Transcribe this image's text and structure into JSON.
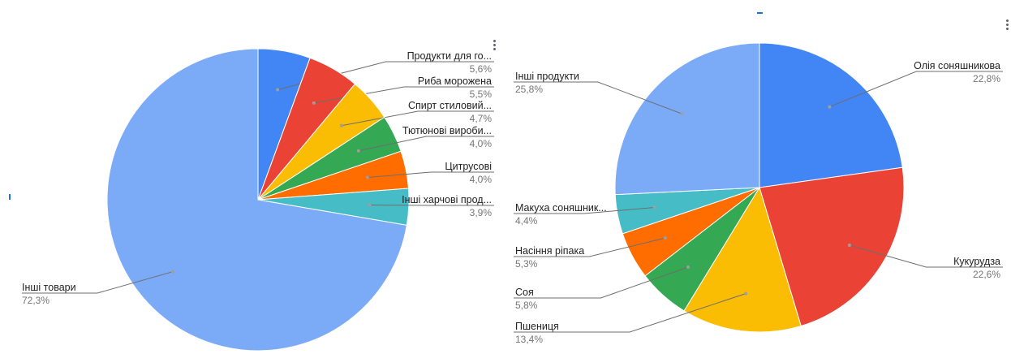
{
  "chart_data": [
    {
      "type": "pie",
      "slices": [
        {
          "label": "Продукти для го...",
          "value": 5.6,
          "value_label": "5,6%",
          "color": "#4285f4"
        },
        {
          "label": "Риба морожена",
          "value": 5.5,
          "value_label": "5,5%",
          "color": "#ea4335"
        },
        {
          "label": "Спирт стиловий...",
          "value": 4.7,
          "value_label": "4,7%",
          "color": "#fbbc04"
        },
        {
          "label": "Тютюнові вироби...",
          "value": 4.0,
          "value_label": "4,0%",
          "color": "#34a853"
        },
        {
          "label": "Цитрусові",
          "value": 4.0,
          "value_label": "4,0%",
          "color": "#ff6d01"
        },
        {
          "label": "Інші харчові прод...",
          "value": 3.9,
          "value_label": "3,9%",
          "color": "#46bdc6"
        },
        {
          "label": "Інші товари",
          "value": 72.3,
          "value_label": "72,3%",
          "color": "#7baaf7"
        }
      ],
      "legend": "none (labels beside slices)"
    },
    {
      "type": "pie",
      "slices": [
        {
          "label": "Олія соняшникова",
          "value": 22.8,
          "value_label": "22,8%",
          "color": "#4285f4"
        },
        {
          "label": "Кукурудза",
          "value": 22.6,
          "value_label": "22,6%",
          "color": "#ea4335"
        },
        {
          "label": "Пшениця",
          "value": 13.4,
          "value_label": "13,4%",
          "color": "#fbbc04"
        },
        {
          "label": "Соя",
          "value": 5.8,
          "value_label": "5,8%",
          "color": "#34a853"
        },
        {
          "label": "Насіння ріпака",
          "value": 5.3,
          "value_label": "5,3%",
          "color": "#ff6d01"
        },
        {
          "label": "Макуха соняшник...",
          "value": 4.4,
          "value_label": "4,4%",
          "color": "#46bdc6"
        },
        {
          "label": "Інші продукти",
          "value": 25.8,
          "value_label": "25,8%",
          "color": "#7baaf7"
        }
      ],
      "legend": "none (labels beside slices)"
    }
  ],
  "ui": {
    "menu_icon": "more-vert-icon",
    "line_color": "#6e6e6e",
    "dot_color": "#9e9e9e"
  }
}
